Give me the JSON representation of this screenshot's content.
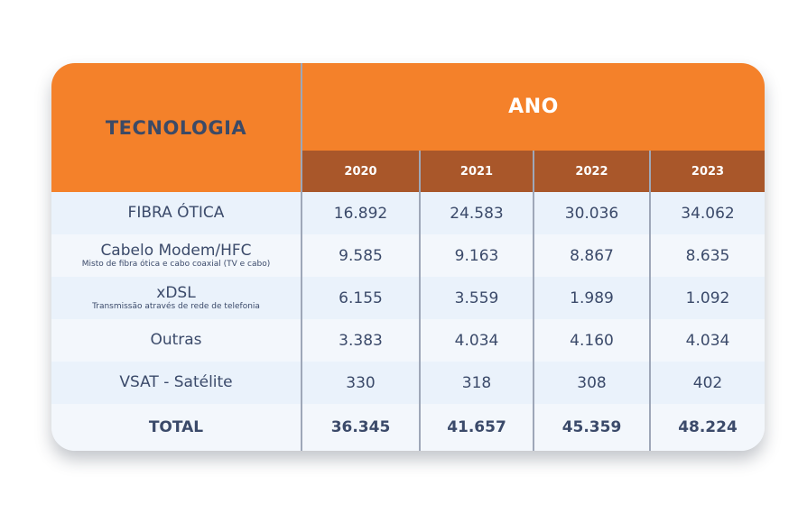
{
  "header": {
    "technology_label": "TECNOLOGIA",
    "year_group_label": "ANO",
    "years": [
      "2020",
      "2021",
      "2022",
      "2023"
    ]
  },
  "rows": [
    {
      "label": "FIBRA ÓTICA",
      "sublabel": "",
      "values": [
        "16.892",
        "24.583",
        "30.036",
        "34.062"
      ]
    },
    {
      "label": "Cabelo Modem/HFC",
      "sublabel": "Misto de fibra ótica e cabo coaxial (TV e cabo)",
      "values": [
        "9.585",
        "9.163",
        "8.867",
        "8.635"
      ]
    },
    {
      "label": "xDSL",
      "sublabel": "Transmissão através de rede de telefonia",
      "values": [
        "6.155",
        "3.559",
        "1.989",
        "1.092"
      ]
    },
    {
      "label": "Outras",
      "sublabel": "",
      "values": [
        "3.383",
        "4.034",
        "4.160",
        "4.034"
      ]
    },
    {
      "label": "VSAT - Satélite",
      "sublabel": "",
      "values": [
        "330",
        "318",
        "308",
        "402"
      ]
    }
  ],
  "total": {
    "label": "TOTAL",
    "values": [
      "36.345",
      "41.657",
      "45.359",
      "48.224"
    ]
  },
  "colors": {
    "header_orange": "#f4812a",
    "year_bar_brown": "#a9572a",
    "row_light": "#eaf2fb",
    "row_lighter": "#f3f7fc",
    "text_navy": "#3b4a6a"
  }
}
